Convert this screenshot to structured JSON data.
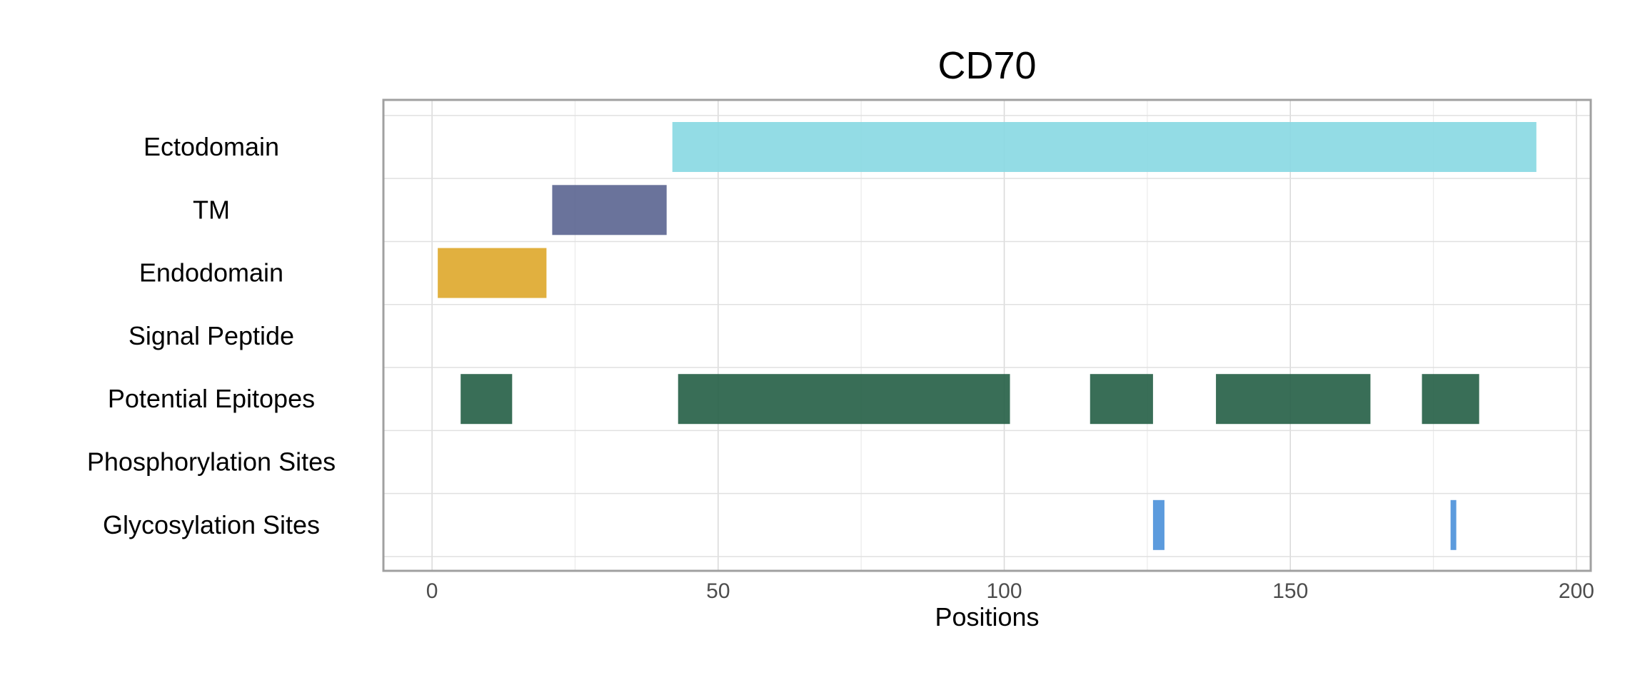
{
  "chart_data": {
    "type": "bar",
    "title": "CD70",
    "xlabel": "Positions",
    "ylabel": "",
    "xlim": [
      -8.5,
      202.5
    ],
    "xticks": [
      0,
      50,
      100,
      150,
      200
    ],
    "grid": true,
    "legend": "none",
    "categories": [
      "Ectodomain",
      "TM",
      "Endodomain",
      "Signal Peptide",
      "Potential Epitopes",
      "Phosphorylation Sites",
      "Glycosylation Sites"
    ],
    "series": [
      {
        "category": "Ectodomain",
        "color": "#87D8E2",
        "segments": [
          [
            42,
            193
          ]
        ]
      },
      {
        "category": "TM",
        "color": "#5A6490",
        "segments": [
          [
            21,
            41
          ]
        ]
      },
      {
        "category": "Endodomain",
        "color": "#DEA72A",
        "segments": [
          [
            1,
            20
          ]
        ]
      },
      {
        "category": "Signal Peptide",
        "color": "#999999",
        "segments": []
      },
      {
        "category": "Potential Epitopes",
        "color": "#245E45",
        "segments": [
          [
            5,
            14
          ],
          [
            43,
            101
          ],
          [
            115,
            126
          ],
          [
            137,
            164
          ],
          [
            173,
            183
          ]
        ]
      },
      {
        "category": "Phosphorylation Sites",
        "color": "#999999",
        "segments": []
      },
      {
        "category": "Glycosylation Sites",
        "color": "#4A90D9",
        "segments": [
          [
            126,
            128
          ],
          [
            178,
            179
          ]
        ]
      }
    ]
  }
}
